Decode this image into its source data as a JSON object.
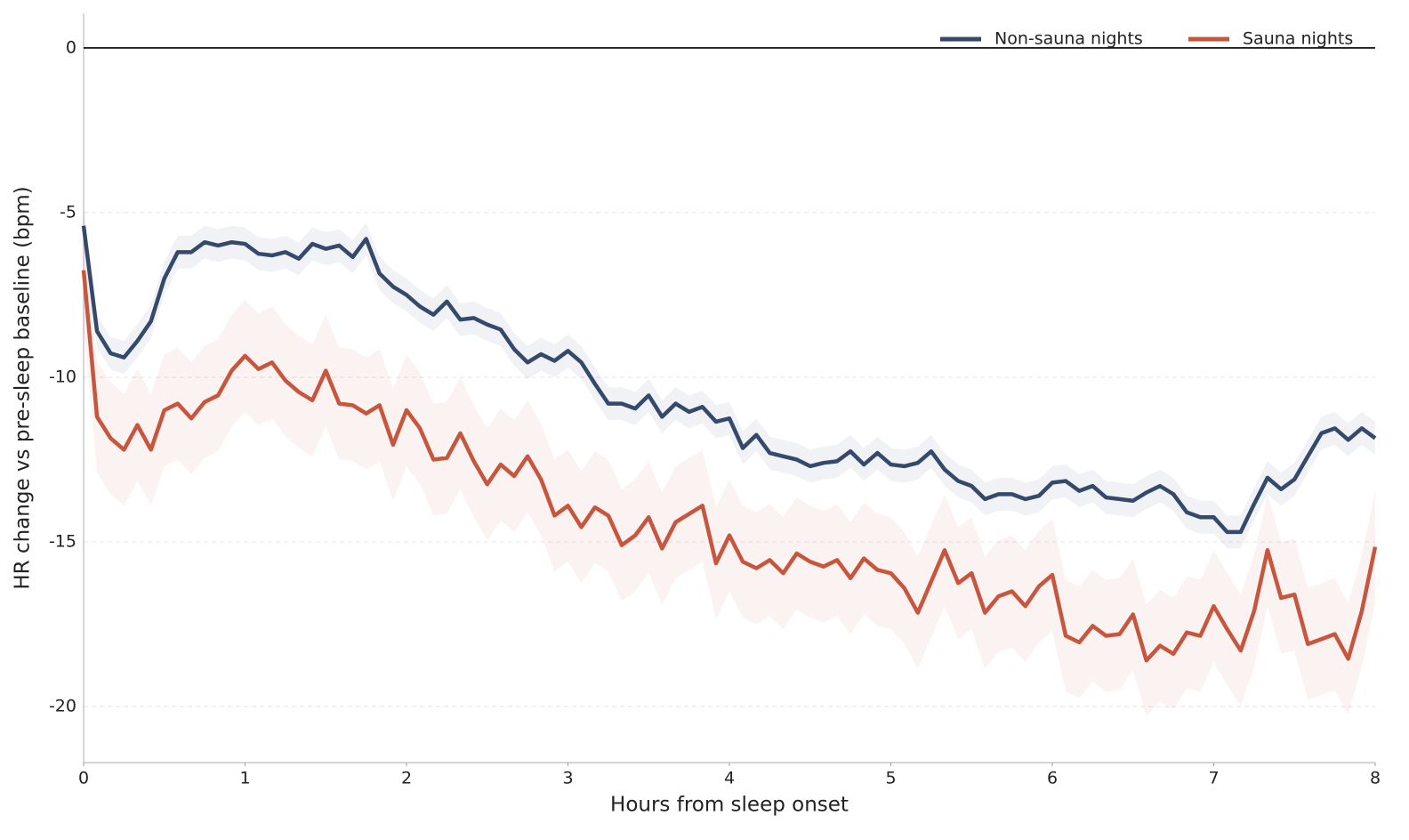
{
  "chart_data": {
    "type": "line",
    "xlabel": "Hours from sleep onset",
    "ylabel": "HR change vs pre-sleep baseline (bpm)",
    "x": [
      0,
      0.083,
      0.167,
      0.25,
      0.333,
      0.417,
      0.5,
      0.583,
      0.667,
      0.75,
      0.833,
      0.917,
      1,
      1.083,
      1.167,
      1.25,
      1.333,
      1.417,
      1.5,
      1.583,
      1.667,
      1.75,
      1.833,
      1.917,
      2,
      2.083,
      2.167,
      2.25,
      2.333,
      2.417,
      2.5,
      2.583,
      2.667,
      2.75,
      2.833,
      2.917,
      3,
      3.083,
      3.167,
      3.25,
      3.333,
      3.417,
      3.5,
      3.583,
      3.667,
      3.75,
      3.833,
      3.917,
      4,
      4.083,
      4.167,
      4.25,
      4.333,
      4.417,
      4.5,
      4.583,
      4.667,
      4.75,
      4.833,
      4.917,
      5,
      5.083,
      5.167,
      5.25,
      5.333,
      5.417,
      5.5,
      5.583,
      5.667,
      5.75,
      5.833,
      5.917,
      6,
      6.083,
      6.167,
      6.25,
      6.333,
      6.417,
      6.5,
      6.583,
      6.667,
      6.75,
      6.833,
      6.917,
      7,
      7.083,
      7.167,
      7.25,
      7.333,
      7.417,
      7.5,
      7.583,
      7.667,
      7.75,
      7.833,
      7.917,
      8
    ],
    "series": [
      {
        "name": "Non-sauna nights",
        "color": "#34496b",
        "band": 0.5,
        "values": [
          -5.4,
          -8.6,
          -9.27,
          -9.4,
          -8.9,
          -8.3,
          -7.0,
          -6.2,
          -6.2,
          -5.9,
          -6.0,
          -5.9,
          -5.95,
          -6.25,
          -6.3,
          -6.2,
          -6.4,
          -5.95,
          -6.1,
          -6.0,
          -6.35,
          -5.8,
          -6.85,
          -7.25,
          -7.5,
          -7.85,
          -8.1,
          -7.7,
          -8.25,
          -8.2,
          -8.4,
          -8.55,
          -9.15,
          -9.55,
          -9.3,
          -9.5,
          -9.2,
          -9.55,
          -10.2,
          -10.8,
          -10.8,
          -10.95,
          -10.55,
          -11.2,
          -10.8,
          -11.05,
          -10.9,
          -11.35,
          -11.25,
          -12.15,
          -11.75,
          -12.3,
          -12.4,
          -12.5,
          -12.7,
          -12.6,
          -12.55,
          -12.25,
          -12.65,
          -12.3,
          -12.65,
          -12.7,
          -12.6,
          -12.25,
          -12.8,
          -13.15,
          -13.3,
          -13.7,
          -13.55,
          -13.55,
          -13.7,
          -13.6,
          -13.2,
          -13.15,
          -13.45,
          -13.3,
          -13.65,
          -13.7,
          -13.75,
          -13.5,
          -13.3,
          -13.55,
          -14.1,
          -14.25,
          -14.25,
          -14.7,
          -14.7,
          -13.85,
          -13.05,
          -13.4,
          -13.1,
          -12.4,
          -11.7,
          -11.55,
          -11.9,
          -11.55,
          -11.85
        ]
      },
      {
        "name": "Sauna nights",
        "color": "#c8553d",
        "band": 1.7,
        "values": [
          -6.75,
          -11.2,
          -11.85,
          -12.2,
          -11.45,
          -12.2,
          -11.0,
          -10.8,
          -11.25,
          -10.75,
          -10.55,
          -9.8,
          -9.35,
          -9.75,
          -9.55,
          -10.1,
          -10.45,
          -10.7,
          -9.8,
          -10.8,
          -10.85,
          -11.1,
          -10.85,
          -12.05,
          -11.0,
          -11.55,
          -12.5,
          -12.45,
          -11.7,
          -12.55,
          -13.25,
          -12.65,
          -13.0,
          -12.4,
          -13.1,
          -14.2,
          -13.9,
          -14.55,
          -13.95,
          -14.2,
          -15.1,
          -14.8,
          -14.25,
          -15.2,
          -14.4,
          -14.15,
          -13.9,
          -15.65,
          -14.8,
          -15.6,
          -15.8,
          -15.55,
          -15.95,
          -15.35,
          -15.6,
          -15.75,
          -15.55,
          -16.1,
          -15.5,
          -15.85,
          -15.95,
          -16.4,
          -17.15,
          -16.2,
          -15.25,
          -16.25,
          -15.95,
          -17.15,
          -16.65,
          -16.5,
          -16.95,
          -16.35,
          -16.0,
          -17.85,
          -18.05,
          -17.55,
          -17.85,
          -17.8,
          -17.2,
          -18.6,
          -18.15,
          -18.4,
          -17.75,
          -17.85,
          -16.95,
          -17.65,
          -18.3,
          -17.1,
          -15.25,
          -16.7,
          -16.6,
          -18.1,
          -17.95,
          -17.8,
          -18.55,
          -17.1,
          -15.15
        ]
      }
    ],
    "xlim": [
      0,
      8
    ],
    "xticks": [
      0,
      1,
      2,
      3,
      4,
      5,
      6,
      7,
      8
    ],
    "ylim": [
      -21.7,
      1.05
    ],
    "yticks": [
      -20,
      -15,
      -10,
      -5,
      0
    ],
    "hline": 0,
    "grid": true,
    "legend": "upper right"
  }
}
